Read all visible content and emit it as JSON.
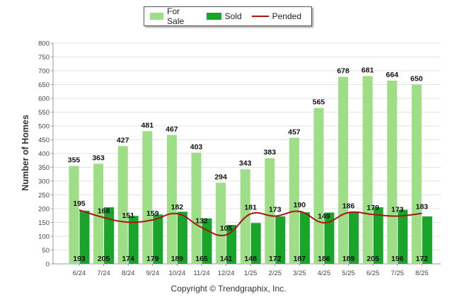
{
  "chart_data": {
    "type": "bar",
    "ylabel": "Number of Homes",
    "ylim": [
      0,
      800
    ],
    "yticks": [
      0,
      50,
      100,
      150,
      200,
      250,
      300,
      350,
      400,
      450,
      500,
      550,
      600,
      650,
      700,
      750,
      800
    ],
    "categories": [
      "6/24",
      "7/24",
      "8/24",
      "9/24",
      "10/24",
      "11/24",
      "12/24",
      "1/25",
      "2/25",
      "3/25",
      "4/25",
      "5/25",
      "6/25",
      "7/25",
      "8/25"
    ],
    "series": [
      {
        "name": "For Sale",
        "kind": "bar",
        "color": "#9ede86",
        "values": [
          355,
          363,
          427,
          481,
          467,
          403,
          294,
          343,
          383,
          457,
          565,
          678,
          681,
          664,
          650
        ]
      },
      {
        "name": "Sold",
        "kind": "bar",
        "color": "#18a52a",
        "values": [
          193,
          205,
          174,
          179,
          189,
          165,
          141,
          148,
          172,
          187,
          186,
          189,
          205,
          196,
          172
        ]
      },
      {
        "name": "Pended",
        "kind": "line",
        "color": "#b01212",
        "values": [
          195,
          168,
          151,
          159,
          182,
          132,
          105,
          181,
          173,
          190,
          149,
          186,
          179,
          173,
          183
        ]
      }
    ],
    "grid": true,
    "legend_position": "top-center",
    "footer": "Copyright © Trendgraphix, Inc."
  }
}
